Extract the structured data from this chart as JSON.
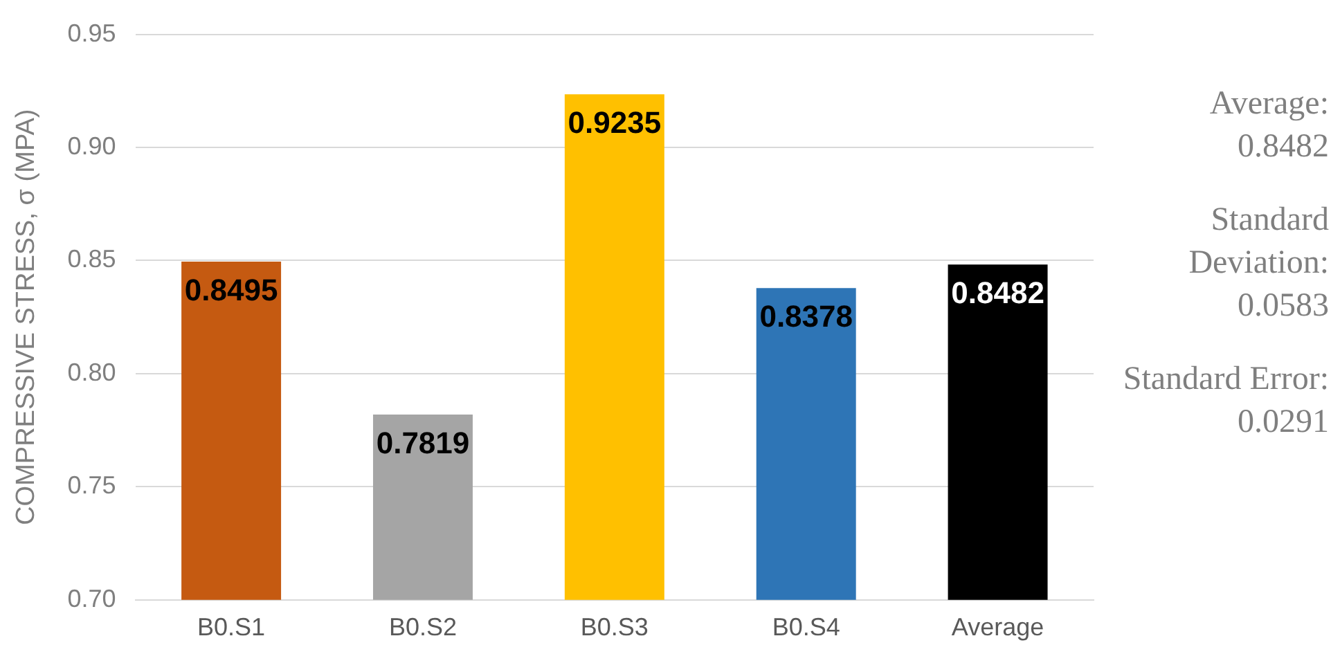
{
  "chart_data": {
    "type": "bar",
    "ylabel": "COMPRESSIVE STRESS, σ (MPA)",
    "categories": [
      "B0.S1",
      "B0.S2",
      "B0.S3",
      "B0.S4",
      "Average"
    ],
    "values": [
      0.8495,
      0.7819,
      0.9235,
      0.8378,
      0.8482
    ],
    "colors": [
      "#c55a11",
      "#a5a5a5",
      "#ffc000",
      "#2e75b6",
      "#000000"
    ],
    "ylim": [
      0.7,
      0.95
    ],
    "yticks": [
      {
        "value": 0.7,
        "label": "0.70"
      },
      {
        "value": 0.75,
        "label": "0.75"
      },
      {
        "value": 0.8,
        "label": "0.80"
      },
      {
        "value": 0.85,
        "label": "0.85"
      },
      {
        "value": 0.9,
        "label": "0.90"
      },
      {
        "value": 0.95,
        "label": "0.95"
      }
    ],
    "grid": "y",
    "data_labels": true,
    "legend": false,
    "annotations": [
      "Average: 0.8482",
      "Standard Deviation: 0.0583",
      "Standard Error: 0.0291"
    ]
  }
}
